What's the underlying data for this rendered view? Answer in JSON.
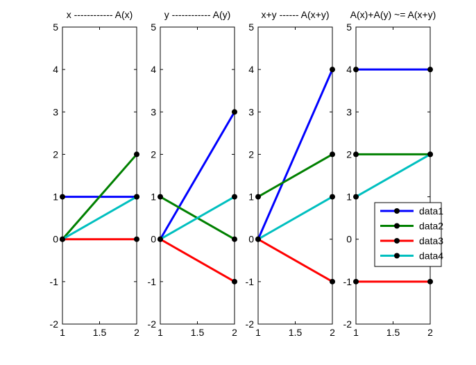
{
  "chart_data": [
    {
      "type": "line",
      "title": "x ------------ A(x)",
      "x": [
        1,
        2
      ],
      "xlim": [
        1,
        2
      ],
      "ylim": [
        -2,
        5
      ],
      "xticks": [
        "1",
        "1.5",
        "2"
      ],
      "yticks": [
        "-2",
        "-1",
        "0",
        "1",
        "2",
        "3",
        "4",
        "5"
      ],
      "grid": false,
      "series": [
        {
          "values": [
            1,
            1
          ],
          "color": "#0000ff"
        },
        {
          "values": [
            0,
            2
          ],
          "color": "#008000"
        },
        {
          "values": [
            0,
            0
          ],
          "color": "#ff0000"
        },
        {
          "values": [
            0,
            1
          ],
          "color": "#00bfbf"
        }
      ]
    },
    {
      "type": "line",
      "title": "y ------------ A(y)",
      "x": [
        1,
        2
      ],
      "xlim": [
        1,
        2
      ],
      "ylim": [
        -2,
        5
      ],
      "xticks": [
        "1",
        "1.5",
        "2"
      ],
      "yticks": [
        "-2",
        "-1",
        "0",
        "1",
        "2",
        "3",
        "4",
        "5"
      ],
      "grid": false,
      "series": [
        {
          "values": [
            0,
            3
          ],
          "color": "#0000ff"
        },
        {
          "values": [
            1,
            0
          ],
          "color": "#008000"
        },
        {
          "values": [
            0,
            -1
          ],
          "color": "#ff0000"
        },
        {
          "values": [
            0,
            1
          ],
          "color": "#00bfbf"
        }
      ]
    },
    {
      "type": "line",
      "title": "x+y ------ A(x+y)",
      "x": [
        1,
        2
      ],
      "xlim": [
        1,
        2
      ],
      "ylim": [
        -2,
        5
      ],
      "xticks": [
        "1",
        "1.5",
        "2"
      ],
      "yticks": [
        "-2",
        "-1",
        "0",
        "1",
        "2",
        "3",
        "4",
        "5"
      ],
      "grid": false,
      "series": [
        {
          "values": [
            0,
            4
          ],
          "color": "#0000ff"
        },
        {
          "values": [
            1,
            2
          ],
          "color": "#008000"
        },
        {
          "values": [
            0,
            -1
          ],
          "color": "#ff0000"
        },
        {
          "values": [
            0,
            1
          ],
          "color": "#00bfbf"
        }
      ]
    },
    {
      "type": "line",
      "title": "A(x)+A(y) ~= A(x+y)",
      "x": [
        1,
        2
      ],
      "xlim": [
        1,
        2
      ],
      "ylim": [
        -2,
        5
      ],
      "xticks": [
        "1",
        "1.5",
        "2"
      ],
      "yticks": [
        "-2",
        "-1",
        "0",
        "1",
        "2",
        "3",
        "4",
        "5"
      ],
      "grid": false,
      "legend": "lower-right",
      "series": [
        {
          "name": "data1",
          "values": [
            4,
            4
          ],
          "color": "#0000ff"
        },
        {
          "name": "data2",
          "values": [
            2,
            2
          ],
          "color": "#008000"
        },
        {
          "name": "data3",
          "values": [
            -1,
            -1
          ],
          "color": "#ff0000"
        },
        {
          "name": "data4",
          "values": [
            1,
            2
          ],
          "color": "#00bfbf"
        }
      ]
    }
  ]
}
